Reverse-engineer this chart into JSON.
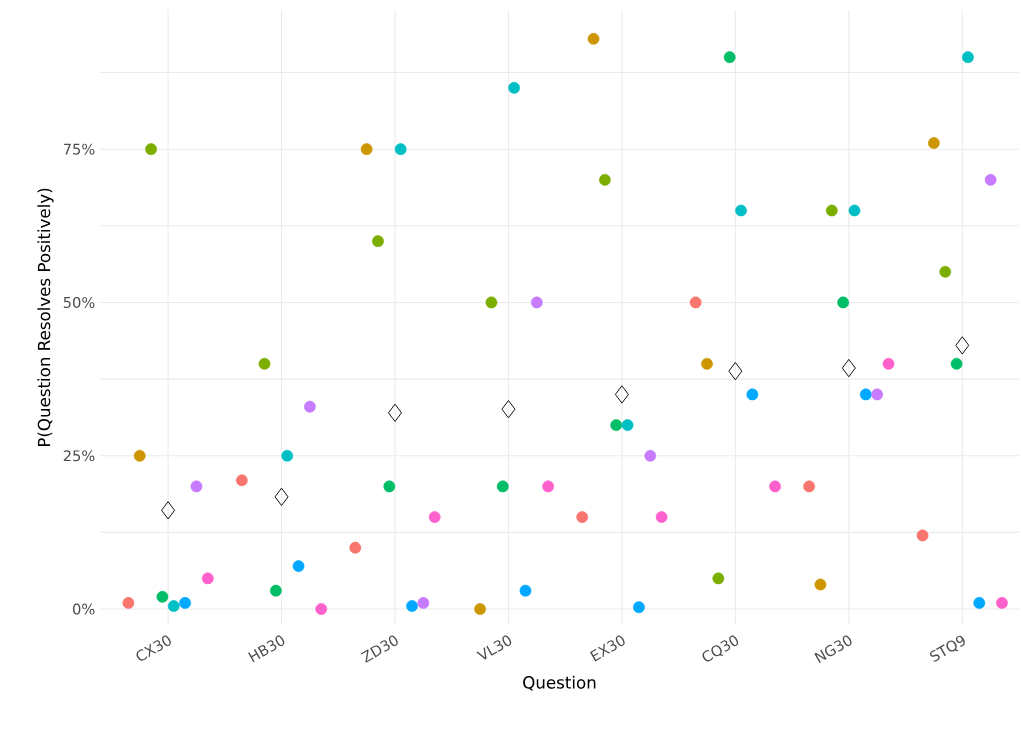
{
  "chart_data": {
    "type": "scatter",
    "xlabel": "Question",
    "ylabel": "P(Question Resolves Positively)",
    "ylim": [
      -2.6,
      97.7
    ],
    "categories": [
      "CX30",
      "HB30",
      "ZD30",
      "VL30",
      "EX30",
      "CQ30",
      "NG30",
      "STQ9"
    ],
    "yticks": [
      {
        "value": 0,
        "label": "0%"
      },
      {
        "value": 12.5,
        "label": null
      },
      {
        "value": 25,
        "label": "25%"
      },
      {
        "value": 37.5,
        "label": null
      },
      {
        "value": 50,
        "label": "50%"
      },
      {
        "value": 62.5,
        "label": null
      },
      {
        "value": 75,
        "label": "75%"
      },
      {
        "value": 87.5,
        "label": null
      }
    ],
    "grid": true,
    "marker": "circle",
    "series": [
      {
        "color": "#F8766D",
        "values": [
          1,
          21,
          10,
          null,
          15,
          50,
          20,
          12
        ]
      },
      {
        "color": "#CD9600",
        "values": [
          25,
          null,
          75,
          0,
          93,
          40,
          4,
          76
        ]
      },
      {
        "color": "#7CAE00",
        "values": [
          75,
          40,
          60,
          50,
          70,
          5,
          65,
          55
        ]
      },
      {
        "color": "#00BE67",
        "values": [
          2,
          3,
          20,
          20,
          30,
          90,
          50,
          40
        ]
      },
      {
        "color": "#00BFC4",
        "values": [
          0.5,
          25,
          75,
          85,
          30,
          65,
          65,
          90
        ]
      },
      {
        "color": "#00A9FF",
        "values": [
          1,
          7,
          0.5,
          3,
          0.3,
          35,
          35,
          1
        ]
      },
      {
        "color": "#C77CFF",
        "values": [
          20,
          33,
          1,
          50,
          25,
          null,
          35,
          70
        ]
      },
      {
        "color": "#FF61CC",
        "values": [
          5,
          0,
          15,
          20,
          15,
          20,
          40,
          1
        ]
      },
      {
        "color": "#000000",
        "marker": "diamond",
        "values": [
          16.1,
          18.3,
          32,
          32.6,
          35,
          38.8,
          39.3,
          43
        ]
      }
    ]
  }
}
